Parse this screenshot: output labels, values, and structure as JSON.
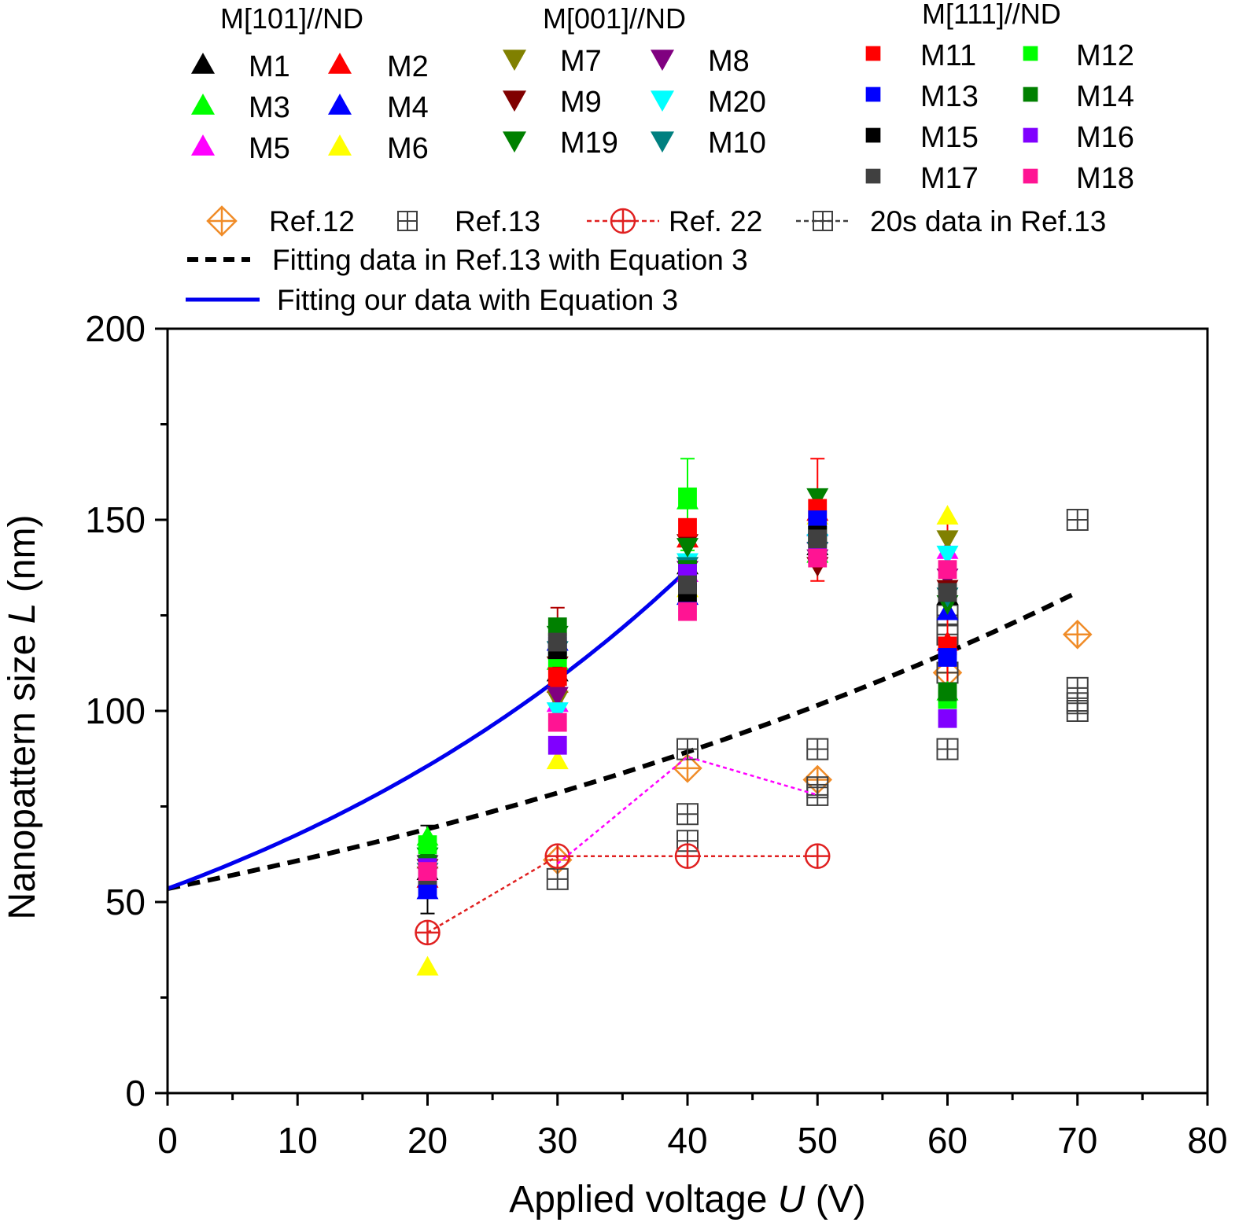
{
  "chart_data": {
    "type": "scatter",
    "xlabel": "Applied voltage U (V)",
    "xlabel_parts": [
      "Applied voltage ",
      "U",
      " (V)"
    ],
    "ylabel": "Nanopattern size L (nm)",
    "ylabel_parts": [
      "Nanopattern size ",
      "L",
      " (nm)"
    ],
    "xlim": [
      0,
      80
    ],
    "ylim": [
      0,
      200
    ],
    "x_major_ticks": [
      0,
      10,
      20,
      30,
      40,
      50,
      60,
      70,
      80
    ],
    "x_minor_ticks": [
      5,
      15,
      25,
      35,
      45,
      55,
      65,
      75
    ],
    "y_major_ticks": [
      0,
      50,
      100,
      150,
      200
    ],
    "y_minor_ticks": [
      25,
      75,
      125,
      175
    ],
    "grid": false,
    "legend_groups": [
      {
        "title": "M[101]//ND",
        "marker": "triangle-up",
        "entries": [
          {
            "name": "M1",
            "color": "#000000"
          },
          {
            "name": "M2",
            "color": "#ff0000"
          },
          {
            "name": "M3",
            "color": "#00ff00"
          },
          {
            "name": "M4",
            "color": "#0000ff"
          },
          {
            "name": "M5",
            "color": "#ff00ff"
          },
          {
            "name": "M6",
            "color": "#ffff00"
          }
        ]
      },
      {
        "title": "M[001]//ND",
        "marker": "triangle-down",
        "entries": [
          {
            "name": "M7",
            "color": "#808000"
          },
          {
            "name": "M8",
            "color": "#800080"
          },
          {
            "name": "M9",
            "color": "#800000"
          },
          {
            "name": "M20",
            "color": "#00ffff"
          },
          {
            "name": "M19",
            "color": "#008000"
          },
          {
            "name": "M10",
            "color": "#008080"
          }
        ]
      },
      {
        "title": "M[111]//ND",
        "marker": "square",
        "entries": [
          {
            "name": "M11",
            "color": "#ff0000"
          },
          {
            "name": "M12",
            "color": "#00ff00"
          },
          {
            "name": "M13",
            "color": "#0000ff"
          },
          {
            "name": "M14",
            "color": "#008000"
          },
          {
            "name": "M15",
            "color": "#000000"
          },
          {
            "name": "M16",
            "color": "#8000ff"
          },
          {
            "name": "M17",
            "color": "#404040"
          },
          {
            "name": "M18",
            "color": "#ff1493"
          }
        ]
      }
    ],
    "ref_legend": [
      {
        "name": "Ref.12",
        "marker": "diamond-cross",
        "color": "#f08c28"
      },
      {
        "name": "Ref.13",
        "marker": "square-cross",
        "color": "#404040"
      },
      {
        "name": "Ref. 22",
        "marker": "circle-cross",
        "color": "#e02020",
        "line": "dotted"
      },
      {
        "name": "20s data in Ref.13",
        "marker": "square-cross",
        "color": "#404040",
        "line": "dotted"
      }
    ],
    "line_legend": [
      {
        "name": "Fitting data in Ref.13 with Equation 3",
        "color": "#000000",
        "style": "dashed"
      },
      {
        "name": "Fitting our data with Equation 3",
        "color": "#0000ee",
        "style": "solid"
      }
    ],
    "series": [
      {
        "name": "M1",
        "marker": "triangle-up",
        "color": "#000000",
        "points": [
          [
            20,
            58
          ],
          [
            30,
            110
          ],
          [
            40,
            138
          ],
          [
            50,
            143
          ],
          [
            60,
            130
          ]
        ]
      },
      {
        "name": "M2",
        "marker": "triangle-up",
        "color": "#ff0000",
        "points": [
          [
            20,
            56
          ],
          [
            30,
            107
          ],
          [
            40,
            145
          ],
          [
            50,
            152
          ],
          [
            60,
            118
          ]
        ]
      },
      {
        "name": "M3",
        "marker": "triangle-up",
        "color": "#00ff00",
        "points": [
          [
            20,
            67
          ],
          [
            30,
            113
          ],
          [
            40,
            155
          ],
          [
            50,
            141
          ],
          [
            60,
            105
          ]
        ]
      },
      {
        "name": "M4",
        "marker": "triangle-up",
        "color": "#0000ff",
        "points": [
          [
            20,
            53
          ],
          [
            30,
            118
          ],
          [
            40,
            130
          ],
          [
            50,
            148
          ],
          [
            60,
            126
          ]
        ]
      },
      {
        "name": "M5",
        "marker": "triangle-up",
        "color": "#ff00ff",
        "points": [
          [
            20,
            61
          ],
          [
            30,
            102
          ],
          [
            40,
            136
          ],
          [
            50,
            146
          ],
          [
            60,
            142
          ]
        ]
      },
      {
        "name": "M6",
        "marker": "triangle-up",
        "color": "#ffff00",
        "points": [
          [
            20,
            33
          ],
          [
            30,
            87
          ],
          [
            40,
            132
          ],
          [
            50,
            151
          ],
          [
            60,
            151
          ]
        ]
      },
      {
        "name": "M7",
        "marker": "triangle-down",
        "color": "#808000",
        "points": [
          [
            20,
            57
          ],
          [
            30,
            103
          ],
          [
            40,
            138
          ],
          [
            50,
            138
          ],
          [
            60,
            145
          ]
        ]
      },
      {
        "name": "M8",
        "marker": "triangle-down",
        "color": "#800080",
        "points": [
          [
            20,
            60
          ],
          [
            30,
            104
          ],
          [
            40,
            137
          ],
          [
            50,
            140
          ],
          [
            60,
            135
          ]
        ]
      },
      {
        "name": "M9",
        "marker": "triangle-down",
        "color": "#800000",
        "points": [
          [
            20,
            59
          ],
          [
            30,
            112
          ],
          [
            40,
            144
          ],
          [
            50,
            138
          ],
          [
            60,
            132
          ]
        ]
      },
      {
        "name": "M20",
        "marker": "triangle-down",
        "color": "#00ffff",
        "points": [
          [
            20,
            62
          ],
          [
            30,
            100
          ],
          [
            40,
            139
          ],
          [
            50,
            144
          ],
          [
            60,
            141
          ]
        ]
      },
      {
        "name": "M19",
        "marker": "triangle-down",
        "color": "#008000",
        "points": [
          [
            20,
            62
          ],
          [
            30,
            120
          ],
          [
            40,
            143
          ],
          [
            50,
            156
          ],
          [
            60,
            128
          ]
        ]
      },
      {
        "name": "M10",
        "marker": "triangle-down",
        "color": "#008080",
        "points": [
          [
            20,
            58
          ],
          [
            30,
            116
          ],
          [
            40,
            138
          ],
          [
            50,
            142
          ],
          [
            60,
            130
          ]
        ]
      },
      {
        "name": "M11",
        "marker": "square",
        "color": "#ff0000",
        "points": [
          [
            20,
            56
          ],
          [
            30,
            109
          ],
          [
            40,
            148
          ],
          [
            50,
            153
          ],
          [
            60,
            117
          ]
        ]
      },
      {
        "name": "M12",
        "marker": "square",
        "color": "#00ff00",
        "points": [
          [
            20,
            65
          ],
          [
            30,
            114
          ],
          [
            40,
            156
          ],
          [
            50,
            143
          ],
          [
            60,
            103
          ]
        ]
      },
      {
        "name": "M13",
        "marker": "square",
        "color": "#0000ff",
        "points": [
          [
            20,
            54
          ],
          [
            30,
            117
          ],
          [
            40,
            134
          ],
          [
            50,
            150
          ],
          [
            60,
            114
          ]
        ]
      },
      {
        "name": "M14",
        "marker": "square",
        "color": "#008000",
        "points": [
          [
            20,
            60
          ],
          [
            30,
            122
          ],
          [
            40,
            137
          ],
          [
            50,
            146
          ],
          [
            60,
            105
          ]
        ]
      },
      {
        "name": "M15",
        "marker": "square",
        "color": "#000000",
        "points": [
          [
            20,
            58
          ],
          [
            30,
            116
          ],
          [
            40,
            131
          ],
          [
            50,
            146
          ],
          [
            60,
            131
          ]
        ]
      },
      {
        "name": "M16",
        "marker": "square",
        "color": "#8000ff",
        "points": [
          [
            20,
            59
          ],
          [
            30,
            91
          ],
          [
            40,
            136
          ],
          [
            50,
            141
          ],
          [
            60,
            98
          ]
        ]
      },
      {
        "name": "M17",
        "marker": "square",
        "color": "#404040",
        "points": [
          [
            20,
            57
          ],
          [
            30,
            118
          ],
          [
            40,
            133
          ],
          [
            50,
            145
          ],
          [
            60,
            131
          ]
        ]
      },
      {
        "name": "M18",
        "marker": "square",
        "color": "#ff1493",
        "points": [
          [
            20,
            58
          ],
          [
            30,
            97
          ],
          [
            40,
            126
          ],
          [
            50,
            140
          ],
          [
            60,
            137
          ]
        ]
      },
      {
        "name": "Ref.12",
        "marker": "diamond-cross",
        "color": "#f08c28",
        "points": [
          [
            30,
            61
          ],
          [
            40,
            85
          ],
          [
            50,
            82
          ],
          [
            60,
            110
          ],
          [
            70,
            120
          ]
        ]
      },
      {
        "name": "Ref.13",
        "marker": "square-cross",
        "color": "#404040",
        "points": [
          [
            30,
            56
          ],
          [
            40,
            66
          ],
          [
            40,
            73
          ],
          [
            40,
            90
          ],
          [
            50,
            78
          ],
          [
            50,
            80
          ],
          [
            50,
            90
          ],
          [
            60,
            90
          ],
          [
            60,
            110
          ],
          [
            60,
            120
          ],
          [
            60,
            125
          ],
          [
            70,
            100
          ],
          [
            70,
            102
          ],
          [
            70,
            106
          ],
          [
            70,
            150
          ]
        ]
      },
      {
        "name": "Ref. 22",
        "marker": "circle-cross",
        "color": "#e02020",
        "line": "dotted",
        "points": [
          [
            20,
            42
          ],
          [
            30,
            62
          ],
          [
            40,
            62
          ],
          [
            50,
            62
          ]
        ]
      },
      {
        "name": "20s data in Ref.13",
        "marker": "none",
        "color": "#ff00ff",
        "line": "dotted",
        "points": [
          [
            30,
            60
          ],
          [
            40,
            88
          ],
          [
            50,
            78
          ]
        ]
      }
    ],
    "error_bars": [
      {
        "x": 20,
        "low": 47,
        "high": 70,
        "color": "#000000"
      },
      {
        "x": 30,
        "low": 104,
        "high": 127,
        "color": "#b00000"
      },
      {
        "x": 40,
        "low": 142,
        "high": 166,
        "color": "#00ff00"
      },
      {
        "x": 50,
        "low": 134,
        "high": 166,
        "color": "#ff0000"
      },
      {
        "x": 60,
        "low": 105,
        "high": 150,
        "color": "#ff0000"
      }
    ],
    "fit_lines": [
      {
        "name": "Fitting data in Ref.13 with Equation 3",
        "equation_params": {
          "a": 53.5,
          "b": 0.0128
        },
        "x_range": [
          0,
          70
        ],
        "style": "dashed",
        "color": "#000000"
      },
      {
        "name": "Fitting our data with Equation 3",
        "equation_params": {
          "a": 53.5,
          "b": 0.0235
        },
        "x_range": [
          0,
          40
        ],
        "style": "solid",
        "color": "#0000ee"
      }
    ]
  }
}
